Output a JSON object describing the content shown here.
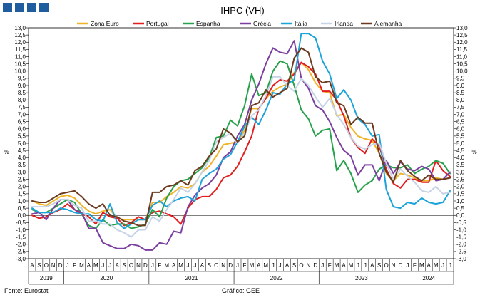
{
  "brand_colors": [
    "#1f5d9e",
    "#1f5d9e",
    "#1f5d9e",
    "#1f5d9e"
  ],
  "footer": {
    "source": "Fonte: Eurostat",
    "credit": "Gráfico: GEE"
  },
  "chart_data": {
    "type": "line",
    "title": "IHPC (VH)",
    "ylabel": "%",
    "ylim": [
      -3.0,
      13.0
    ],
    "ytick_step": 0.5,
    "legend_position": "top",
    "grid": false,
    "months": [
      "A",
      "S",
      "O",
      "N",
      "D",
      "J",
      "F",
      "M",
      "A",
      "M",
      "J",
      "J",
      "A",
      "S",
      "O",
      "N",
      "D",
      "J",
      "F",
      "M",
      "A",
      "M",
      "J",
      "J",
      "A",
      "S",
      "O",
      "N",
      "D",
      "J",
      "F",
      "M",
      "A",
      "M",
      "J",
      "J",
      "A",
      "S",
      "O",
      "N",
      "D",
      "J",
      "F",
      "M",
      "A",
      "M",
      "J",
      "J",
      "A",
      "S",
      "O",
      "N",
      "D",
      "J",
      "F",
      "M",
      "A",
      "M",
      "J",
      "J"
    ],
    "years": [
      {
        "label": "2019",
        "start": 0,
        "end": 4
      },
      {
        "label": "2020",
        "start": 5,
        "end": 16
      },
      {
        "label": "2021",
        "start": 17,
        "end": 28
      },
      {
        "label": "2022",
        "start": 29,
        "end": 40
      },
      {
        "label": "2023",
        "start": 41,
        "end": 52
      },
      {
        "label": "2024",
        "start": 53,
        "end": 59
      }
    ],
    "series": [
      {
        "name": "Zona Euro",
        "color": "#f0b429",
        "values": [
          1.0,
          0.8,
          0.7,
          1.0,
          1.3,
          1.4,
          1.2,
          0.7,
          0.3,
          0.1,
          0.3,
          0.4,
          -0.2,
          -0.3,
          -0.3,
          -0.3,
          -0.3,
          0.9,
          0.9,
          1.3,
          1.6,
          2.0,
          1.9,
          2.2,
          3.0,
          3.4,
          4.1,
          4.9,
          5.0,
          5.1,
          5.9,
          7.4,
          7.4,
          8.1,
          8.6,
          8.9,
          9.1,
          9.9,
          10.6,
          10.1,
          9.2,
          8.6,
          8.5,
          6.9,
          7.0,
          6.1,
          5.5,
          5.3,
          5.2,
          4.3,
          2.9,
          2.4,
          2.9,
          2.8,
          2.6,
          2.4,
          2.4,
          2.6,
          2.5,
          2.6
        ]
      },
      {
        "name": "Portugal",
        "color": "#e11d1d",
        "values": [
          0.0,
          -0.2,
          -0.1,
          0.2,
          0.4,
          0.8,
          0.4,
          0.1,
          -0.1,
          -0.6,
          0.2,
          -0.1,
          -0.2,
          -0.7,
          -0.5,
          -0.1,
          -0.3,
          0.2,
          0.3,
          0.1,
          -0.1,
          -0.6,
          0.5,
          1.1,
          1.3,
          1.3,
          1.8,
          2.6,
          2.8,
          3.4,
          4.4,
          5.5,
          7.4,
          8.1,
          9.0,
          9.4,
          9.3,
          9.8,
          10.6,
          10.3,
          9.8,
          8.6,
          8.6,
          8.0,
          6.9,
          5.4,
          4.7,
          4.3,
          5.3,
          4.8,
          3.2,
          2.2,
          1.9,
          2.5,
          2.5,
          2.3,
          2.3,
          3.8,
          3.1,
          2.7
        ]
      },
      {
        "name": "Espanha",
        "color": "#27a14b",
        "values": [
          0.4,
          0.2,
          0.2,
          0.5,
          0.8,
          1.1,
          0.9,
          0.1,
          -0.7,
          -0.9,
          -0.3,
          -0.7,
          -0.6,
          -0.6,
          -0.9,
          -0.8,
          -0.6,
          0.4,
          -0.1,
          1.2,
          2.0,
          2.4,
          2.5,
          2.9,
          3.3,
          4.0,
          5.4,
          5.5,
          6.6,
          6.2,
          7.6,
          9.8,
          8.3,
          8.5,
          10.0,
          10.7,
          10.5,
          9.0,
          7.3,
          6.7,
          5.5,
          5.9,
          6.0,
          3.1,
          3.8,
          2.9,
          1.6,
          2.1,
          2.4,
          3.2,
          3.5,
          3.3,
          3.3,
          3.5,
          2.9,
          3.2,
          3.4,
          3.8,
          3.6,
          2.9
        ]
      },
      {
        "name": "Grécia",
        "color": "#7b3fa0",
        "values": [
          0.1,
          0.2,
          -0.3,
          0.5,
          1.1,
          1.1,
          0.4,
          0.2,
          -0.9,
          -0.9,
          -1.9,
          -2.1,
          -2.3,
          -2.3,
          -2.0,
          -2.1,
          -2.4,
          -2.4,
          -1.9,
          -2.0,
          -1.1,
          -1.2,
          0.6,
          1.4,
          1.9,
          2.2,
          2.8,
          4.0,
          4.4,
          5.5,
          6.3,
          8.0,
          9.1,
          10.5,
          11.6,
          11.3,
          11.2,
          12.1,
          9.5,
          8.8,
          7.6,
          7.3,
          6.5,
          5.4,
          4.5,
          4.1,
          2.8,
          3.5,
          3.5,
          2.4,
          3.8,
          2.9,
          3.7,
          3.2,
          3.1,
          3.4,
          3.2,
          2.4,
          2.5,
          3.0
        ]
      },
      {
        "name": "Itália",
        "color": "#1ca3d9",
        "values": [
          0.5,
          0.2,
          0.2,
          0.2,
          0.5,
          0.4,
          0.2,
          0.1,
          0.1,
          -0.3,
          -0.4,
          0.8,
          -0.5,
          -0.9,
          -0.6,
          -0.3,
          -0.3,
          0.7,
          1.0,
          0.6,
          1.0,
          1.2,
          1.3,
          1.0,
          2.5,
          2.9,
          3.2,
          3.9,
          4.2,
          5.1,
          6.2,
          6.8,
          6.3,
          7.3,
          8.5,
          8.4,
          9.1,
          9.4,
          12.6,
          12.6,
          12.3,
          10.7,
          9.8,
          8.1,
          8.7,
          8.0,
          6.7,
          6.3,
          5.5,
          5.6,
          1.8,
          0.6,
          0.5,
          0.9,
          0.8,
          1.2,
          0.9,
          0.8,
          0.9,
          1.7
        ]
      },
      {
        "name": "Irlanda",
        "color": "#c6d3e6",
        "values": [
          0.6,
          0.6,
          0.6,
          0.8,
          1.1,
          1.1,
          0.7,
          0.5,
          -0.4,
          -0.4,
          -0.6,
          -0.6,
          -1.0,
          -1.2,
          -1.5,
          -1.0,
          -1.0,
          -0.1,
          -0.4,
          0.4,
          1.1,
          1.9,
          1.6,
          2.2,
          3.0,
          3.8,
          5.1,
          5.4,
          5.7,
          5.0,
          5.7,
          6.9,
          7.3,
          8.3,
          9.6,
          9.6,
          9.0,
          8.6,
          9.5,
          9.0,
          8.2,
          7.5,
          8.1,
          7.0,
          6.3,
          5.4,
          4.8,
          4.6,
          4.9,
          5.0,
          3.6,
          2.5,
          3.2,
          2.7,
          2.3,
          1.7,
          1.6,
          2.0,
          1.5,
          1.6
        ]
      },
      {
        "name": "Alemanha",
        "color": "#6b3a1f",
        "values": [
          1.0,
          0.9,
          0.9,
          1.2,
          1.5,
          1.6,
          1.7,
          1.3,
          0.8,
          0.5,
          0.8,
          0.0,
          -0.1,
          -0.4,
          -0.5,
          -0.7,
          -0.7,
          1.6,
          1.6,
          2.0,
          2.1,
          2.4,
          2.1,
          3.1,
          3.4,
          4.1,
          4.6,
          6.0,
          5.7,
          5.1,
          5.5,
          7.6,
          7.8,
          8.7,
          8.2,
          8.5,
          8.8,
          10.9,
          11.6,
          11.3,
          9.6,
          9.2,
          9.3,
          7.8,
          7.6,
          6.3,
          6.8,
          6.4,
          6.4,
          4.3,
          3.0,
          2.3,
          3.8,
          3.1,
          2.7,
          2.4,
          2.8,
          2.5,
          2.5,
          2.6
        ]
      }
    ]
  }
}
